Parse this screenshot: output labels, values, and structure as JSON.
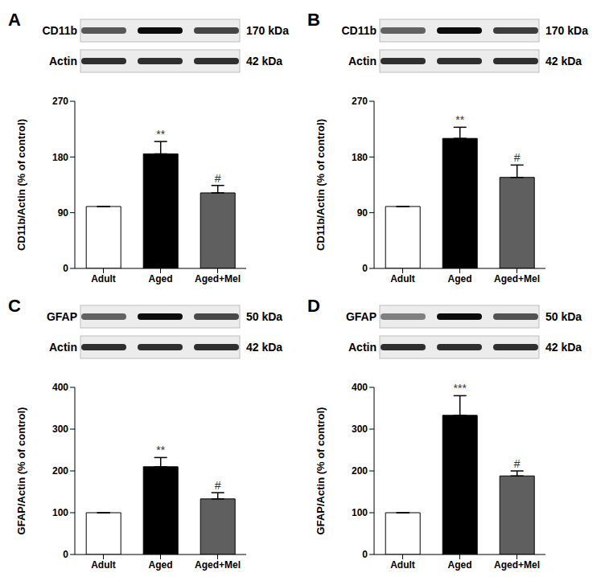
{
  "chart_data": [
    {
      "panel_label": "A",
      "type": "bar",
      "blots": [
        {
          "label": "CD11b",
          "size": "170 kDa"
        },
        {
          "label": "Actin",
          "size": "42 kDa"
        }
      ],
      "categories": [
        "Adult",
        "Aged",
        "Aged+Mel"
      ],
      "values": [
        100,
        185,
        122
      ],
      "errors": [
        0,
        20,
        12
      ],
      "significance": [
        null,
        "**",
        "#"
      ],
      "colors": [
        "#ffffff",
        "#000000",
        "#5f5f5f"
      ],
      "ylabel": "CD11b/Actin (% of control)",
      "ylim": [
        0,
        270
      ],
      "yticks": [
        0,
        90,
        180,
        270
      ]
    },
    {
      "panel_label": "B",
      "type": "bar",
      "blots": [
        {
          "label": "CD11b",
          "size": "170 kDa"
        },
        {
          "label": "Actin",
          "size": "42 kDa"
        }
      ],
      "categories": [
        "Adult",
        "Aged",
        "Aged+Mel"
      ],
      "values": [
        100,
        210,
        147
      ],
      "errors": [
        0,
        18,
        20
      ],
      "significance": [
        null,
        "**",
        "#"
      ],
      "colors": [
        "#ffffff",
        "#000000",
        "#5f5f5f"
      ],
      "ylabel": "CD11b/Actin (% of control)",
      "ylim": [
        0,
        270
      ],
      "yticks": [
        0,
        90,
        180,
        270
      ]
    },
    {
      "panel_label": "C",
      "type": "bar",
      "blots": [
        {
          "label": "GFAP",
          "size": "50 kDa"
        },
        {
          "label": "Actin",
          "size": "42 kDa"
        }
      ],
      "categories": [
        "Adult",
        "Aged",
        "Aged+Mel"
      ],
      "values": [
        100,
        210,
        133
      ],
      "errors": [
        0,
        22,
        15
      ],
      "significance": [
        null,
        "**",
        "#"
      ],
      "colors": [
        "#ffffff",
        "#000000",
        "#5f5f5f"
      ],
      "ylabel": "GFAP/Actin (% of control)",
      "ylim": [
        0,
        400
      ],
      "yticks": [
        0,
        100,
        200,
        300,
        400
      ]
    },
    {
      "panel_label": "D",
      "type": "bar",
      "blots": [
        {
          "label": "GFAP",
          "size": "50 kDa"
        },
        {
          "label": "Actin",
          "size": "42 kDa"
        }
      ],
      "categories": [
        "Adult",
        "Aged",
        "Aged+Mel"
      ],
      "values": [
        100,
        333,
        188
      ],
      "errors": [
        0,
        47,
        12
      ],
      "significance": [
        null,
        "***",
        "#"
      ],
      "colors": [
        "#ffffff",
        "#000000",
        "#5f5f5f"
      ],
      "ylabel": "GFAP/Actin (% of control)",
      "ylim": [
        0,
        400
      ],
      "yticks": [
        0,
        100,
        200,
        300,
        400
      ]
    }
  ]
}
